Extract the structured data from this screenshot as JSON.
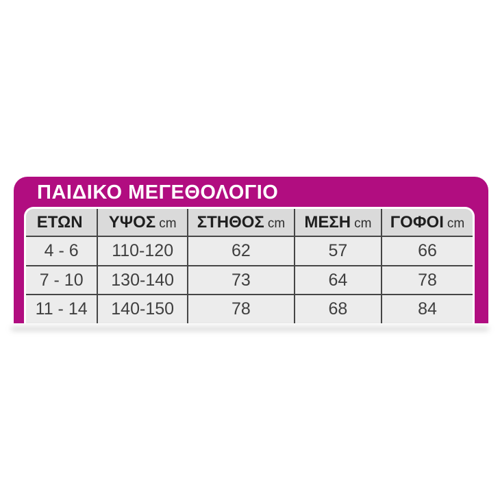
{
  "title": "ΠΑΙΔΙΚΟ ΜΕΓΕΘΟΛΟΓΙΟ",
  "chart_data": {
    "type": "table",
    "title": "ΠΑΙΔΙΚΟ ΜΕΓΕΘΟΛΟΓΙΟ",
    "columns": [
      {
        "label": "ΕΤΩΝ",
        "unit": ""
      },
      {
        "label": "ΥΨΟΣ",
        "unit": "cm"
      },
      {
        "label": "ΣΤΗΘΟΣ",
        "unit": "cm"
      },
      {
        "label": "ΜΕΣΗ",
        "unit": "cm"
      },
      {
        "label": "ΓΟΦΟΙ",
        "unit": "cm"
      }
    ],
    "rows": [
      [
        "4 - 6",
        "110-120",
        "62",
        "57",
        "66"
      ],
      [
        "7 - 10",
        "130-140",
        "73",
        "64",
        "78"
      ],
      [
        "11 - 14",
        "140-150",
        "78",
        "68",
        "84"
      ]
    ]
  },
  "colors": {
    "frame_magenta": "#b10d80",
    "header_bg": "#dadada",
    "row_bg": "#ececec",
    "grid_line": "#454545",
    "title_text": "#ffffff",
    "cell_text": "#3f3f3f",
    "page_bg": "#ffffff"
  }
}
